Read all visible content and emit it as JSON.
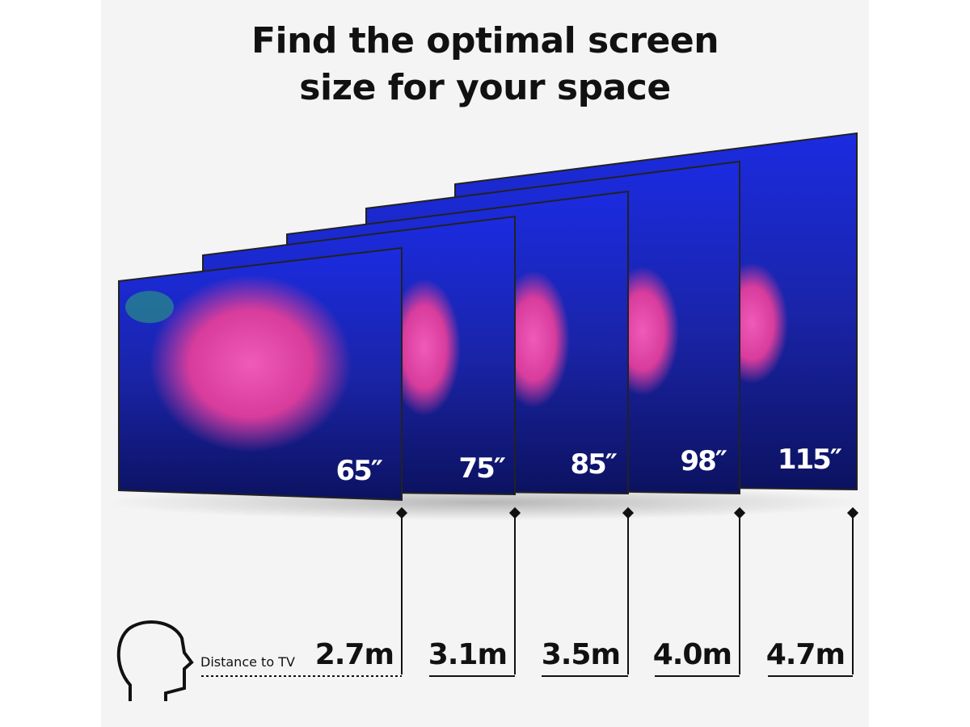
{
  "title": {
    "line1": "Find the optimal screen",
    "line2": "size for your space"
  },
  "distance_label": "Distance to TV",
  "tvs": [
    {
      "size": "65″",
      "distance": "2.7m"
    },
    {
      "size": "75″",
      "distance": "3.1m"
    },
    {
      "size": "85″",
      "distance": "3.5m"
    },
    {
      "size": "98″",
      "distance": "4.0m"
    },
    {
      "size": "115″",
      "distance": "4.7m"
    }
  ],
  "icons": {
    "viewer": "head-profile-icon"
  },
  "colors": {
    "background": "#f4f4f4",
    "screen_blue": "#1a2ec8",
    "coral_pink": "#e0409a",
    "text": "#111111"
  }
}
